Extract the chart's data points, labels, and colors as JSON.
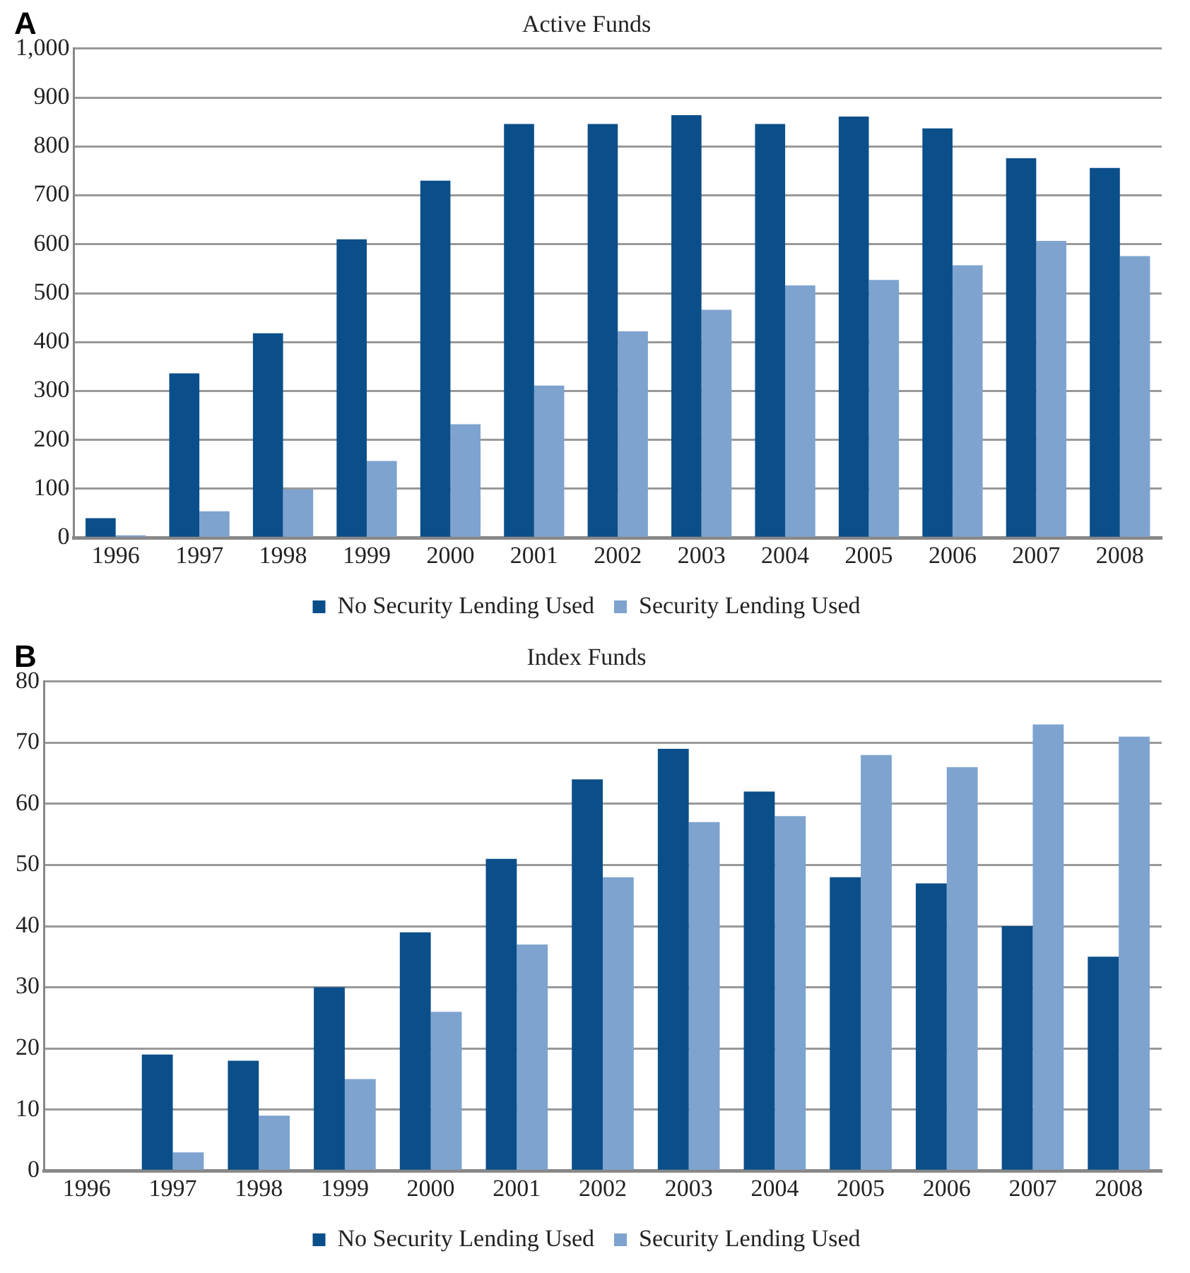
{
  "chart_data": [
    {
      "type": "bar",
      "title": "Active Funds",
      "annotations": [
        "A"
      ],
      "categories": [
        "1996",
        "1997",
        "1998",
        "1999",
        "2000",
        "2001",
        "2002",
        "2003",
        "2004",
        "2005",
        "2006",
        "2007",
        "2008"
      ],
      "series": [
        {
          "name": "No Security Lending Used",
          "color": "#0b4f8a",
          "values": [
            40,
            336,
            418,
            610,
            730,
            846,
            846,
            864,
            846,
            861,
            837,
            776,
            756
          ]
        },
        {
          "name": "Security Lending Used",
          "color": "#7ea3cf",
          "values": [
            5,
            54,
            99,
            157,
            232,
            311,
            422,
            466,
            516,
            527,
            557,
            607,
            576
          ]
        }
      ],
      "ylim": [
        0,
        1000
      ],
      "yticks": [
        0,
        100,
        200,
        300,
        400,
        500,
        600,
        700,
        800,
        900,
        {
          "value": 1000,
          "label": "1,000"
        }
      ],
      "grid": "y",
      "legend": "bottom"
    },
    {
      "type": "bar",
      "title": "Index Funds",
      "annotations": [
        "B"
      ],
      "categories": [
        "1996",
        "1997",
        "1998",
        "1999",
        "2000",
        "2001",
        "2002",
        "2003",
        "2004",
        "2005",
        "2006",
        "2007",
        "2008"
      ],
      "series": [
        {
          "name": "No Security Lending Used",
          "color": "#0b4f8a",
          "values": [
            0,
            19,
            18,
            30,
            39,
            51,
            64,
            69,
            62,
            48,
            47,
            40,
            35
          ]
        },
        {
          "name": "Security Lending Used",
          "color": "#7ea3cf",
          "values": [
            0,
            3,
            9,
            15,
            26,
            37,
            48,
            57,
            58,
            68,
            66,
            73,
            71
          ]
        }
      ],
      "ylim": [
        0,
        80
      ],
      "yticks": [
        0,
        10,
        20,
        30,
        40,
        50,
        60,
        70,
        80
      ],
      "grid": "y",
      "legend": "bottom"
    }
  ]
}
